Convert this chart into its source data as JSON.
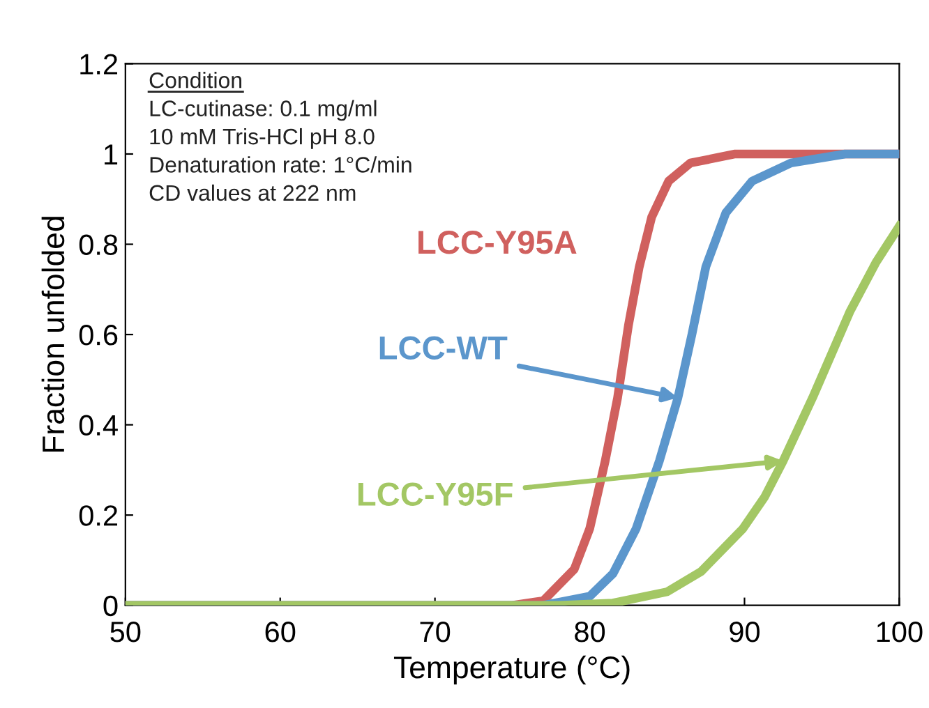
{
  "chart_data": {
    "type": "line",
    "xlabel": "Temperature (°C)",
    "ylabel": "Fraction unfolded",
    "annotations": [
      "Condition",
      "LC-cutinase: 0.1 mg/ml",
      "10 mM Tris-HCl pH 8.0",
      "Denaturation rate: 1°C/min",
      "CD values at 222 nm"
    ],
    "series": [
      {
        "name": "LCC-Y95A",
        "color": "#d0605e",
        "x": [
          50,
          75,
          77,
          79,
          80,
          81,
          81.8,
          82.5,
          83.2,
          84,
          85.1,
          86.5,
          89.4,
          100
        ],
        "values": [
          0,
          0,
          0.01,
          0.08,
          0.17,
          0.32,
          0.46,
          0.62,
          0.75,
          0.86,
          0.94,
          0.98,
          1.0,
          1.0
        ]
      },
      {
        "name": "LCC-WT",
        "color": "#5b96cc",
        "x": [
          50,
          77,
          80,
          81.5,
          83,
          84.5,
          85.7,
          86.6,
          87.5,
          88.8,
          90.5,
          93,
          96.5,
          100
        ],
        "values": [
          0,
          0,
          0.02,
          0.07,
          0.17,
          0.32,
          0.46,
          0.6,
          0.75,
          0.87,
          0.94,
          0.98,
          1.0,
          1.0
        ]
      },
      {
        "name": "LCC-Y95F",
        "color": "#a3c764",
        "x": [
          50,
          78,
          81.5,
          85,
          87.2,
          89.9,
          91.3,
          92.5,
          94.4,
          96.8,
          98.5,
          100
        ],
        "values": [
          0,
          0,
          0.005,
          0.03,
          0.075,
          0.17,
          0.24,
          0.32,
          0.46,
          0.65,
          0.76,
          0.84
        ]
      }
    ],
    "xlim": [
      50,
      100
    ],
    "xticks": [
      50,
      60,
      70,
      80,
      90,
      100
    ],
    "ylim": [
      0,
      1.2
    ],
    "yticks": [
      0,
      0.2,
      0.4,
      0.6,
      0.8,
      1,
      1.2
    ],
    "grid": false,
    "legend": false,
    "marker": "none",
    "line_style": "solid"
  }
}
